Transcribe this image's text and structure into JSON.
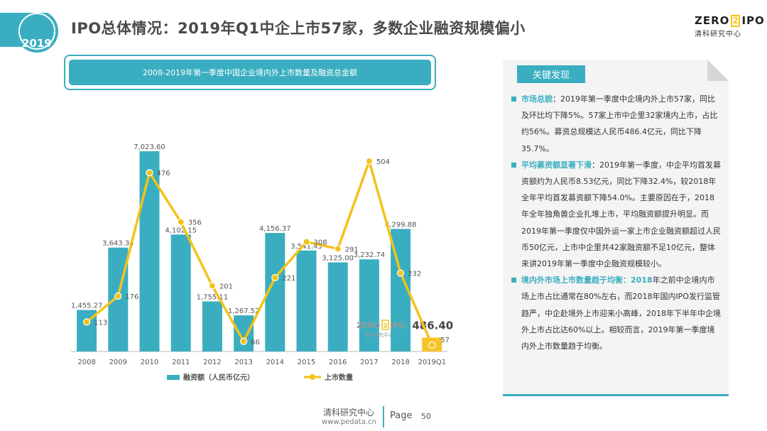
{
  "header": {
    "year": "2019",
    "title": "IPO总体情况：2019年Q1中企上市57家，多数企业融资规模偏小",
    "logo": {
      "text_left": "ZERO",
      "text_mid": "2",
      "text_right": "IPO",
      "sub": "清科研究中心"
    }
  },
  "chart_header": {
    "title": "2008-2019年第一季度中国企业境内外上市数量及融资总金额"
  },
  "chart_data": {
    "type": "bar",
    "categories": [
      "2008",
      "2009",
      "2010",
      "2011",
      "2012",
      "2013",
      "2014",
      "2015",
      "2016",
      "2017",
      "2018",
      "2019Q1"
    ],
    "series": [
      {
        "name": "融资额（人民币亿元）",
        "kind": "bar",
        "values": [
          1455.27,
          3643.34,
          7023.6,
          4102.15,
          1755.11,
          1267.52,
          4156.37,
          3541.45,
          3125.0,
          3232.74,
          4299.88,
          486.4
        ],
        "labels": [
          "1,455.27",
          "3,643.34",
          "7,023.60",
          "4,102.15",
          "1,755.11",
          "1,267.52",
          "4,156.37",
          "3,541.45",
          "3,125.00",
          "3,232.74",
          "4,299.88",
          "486.40"
        ]
      },
      {
        "name": "上市数量",
        "kind": "line",
        "values": [
          113,
          176,
          476,
          356,
          201,
          66,
          221,
          308,
          291,
          504,
          232,
          57
        ],
        "labels": [
          "113",
          "176",
          "476",
          "356",
          "201",
          "66",
          "221",
          "308",
          "291",
          "504",
          "232",
          "57"
        ]
      }
    ],
    "watermark": {
      "text_left": "ZERO",
      "text_mid": "2",
      "text_right": "IPO",
      "sub": "清科研究中心"
    },
    "colors": {
      "bar": "#3aaec0",
      "bar_highlight": "#f6c12a",
      "line": "#f2c318"
    },
    "legend_position": "bottom",
    "grid": false
  },
  "panel": {
    "title": "关键发现",
    "points": [
      {
        "head": "市场总貌",
        "body": "：2019年第一季度中企境内外上市57家，同比及环比均下降5%。57家上市中企里32家境内上市，占比约56%。募资总规模达人民币486.4亿元，同比下降35.7%。"
      },
      {
        "head": "平均募资额显著下滑",
        "body": "：2019年第一季度，中企平均首发募资额约为人民币8.53亿元，同比下降32.4%，较2018年全年平均首发募资额下降54.0%。主要原因在于，2018年全年独角兽企业扎堆上市，平均融资额提升明显。而2019年第一季度仅中国外运一家上市企业融资额超过人民币50亿元，上市中企里共42家融资额不足10亿元，整体来讲2019年第一季度中企融资规模较小。"
      },
      {
        "head": "境内外市场上市数量趋于均衡",
        "hl": "：2018",
        "body": "年之前中企境内市场上市占比通常在80%左右，而2018年国内IPO发行监管趋严，中企赴境外上市迎来小高峰，2018年下半年中企境外上市占比达60%以上。相较而言，2019年第一季度境内外上市数量趋于均衡。"
      }
    ]
  },
  "footer": {
    "org": "清科研究中心",
    "url": "www.pedata.cn",
    "page_label": "Page",
    "page_number": "50"
  }
}
